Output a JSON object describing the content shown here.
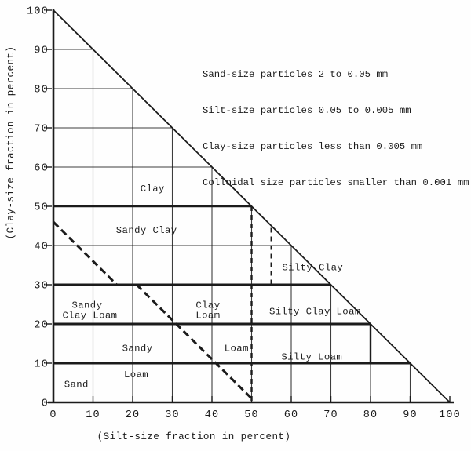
{
  "page": {
    "background": "#fefefe",
    "ink": "#1b1b1b",
    "description": "Triangular soil texture classification chart (typewritten scan)"
  },
  "notes": {
    "lines": [
      "Sand-size particles 2 to 0.05 mm",
      "Silt-size particles 0.05 to 0.005 mm",
      "Clay-size particles less than 0.005 mm",
      "Colloidal size particles smaller than 0.001 mm"
    ]
  },
  "chart": {
    "type": "soil-texture-classification-triangle",
    "x_axis": {
      "title": "(Silt-size fraction in percent)",
      "min": 0,
      "max": 100,
      "ticks": [
        "0",
        "10",
        "20",
        "30",
        "40",
        "50",
        "60",
        "70",
        "80",
        "90",
        "100"
      ]
    },
    "y_axis": {
      "title": "(Clay-size fraction in percent)",
      "min": 0,
      "max": 100,
      "ticks": [
        "0",
        "10",
        "20",
        "30",
        "40",
        "50",
        "60",
        "70",
        "80",
        "90",
        "100"
      ]
    },
    "grid_step": 10,
    "labels": [
      {
        "text": "Clay",
        "silt": 25.0,
        "clay": 54.6
      },
      {
        "text": "Sandy Clay",
        "silt": 23.5,
        "clay": 44.0
      },
      {
        "text": "Silty Clay",
        "silt": 65.4,
        "clay": 34.5
      },
      {
        "text": "Sandy",
        "silt": 8.5,
        "clay": 24.9
      },
      {
        "text": "Clay Loam",
        "silt": 9.2,
        "clay": 22.3
      },
      {
        "text": "Clay",
        "silt": 39.0,
        "clay": 24.9
      },
      {
        "text": "Loam",
        "silt": 39.0,
        "clay": 22.3
      },
      {
        "text": "Silty Clay Loam",
        "silt": 66.0,
        "clay": 23.3
      },
      {
        "text": "Sandy",
        "silt": 21.2,
        "clay": 13.9
      },
      {
        "text": "Loam",
        "silt": 20.9,
        "clay": 7.2
      },
      {
        "text": "Loam",
        "silt": 46.2,
        "clay": 13.9
      },
      {
        "text": "Silty Loam",
        "silt": 65.2,
        "clay": 11.7
      },
      {
        "text": "Sand",
        "silt": 5.8,
        "clay": 4.7
      }
    ],
    "boundaries": [
      {
        "from": [
          0,
          50
        ],
        "to": [
          50,
          50
        ],
        "style": "solid",
        "weight": "medium"
      },
      {
        "from": [
          0,
          30
        ],
        "to": [
          70,
          30
        ],
        "style": "solid",
        "weight": "heavy"
      },
      {
        "from": [
          0,
          20
        ],
        "to": [
          80,
          20
        ],
        "style": "solid",
        "weight": "heavy"
      },
      {
        "from": [
          0,
          10
        ],
        "to": [
          90,
          10
        ],
        "style": "solid",
        "weight": "heavy"
      },
      {
        "from": [
          50,
          50
        ],
        "to": [
          50,
          0
        ],
        "style": "dashed",
        "weight": "medium"
      },
      {
        "from": [
          55,
          44.5
        ],
        "to": [
          55,
          30
        ],
        "style": "dashed",
        "weight": "medium"
      },
      {
        "from": [
          80,
          20
        ],
        "to": [
          80,
          10
        ],
        "style": "solid",
        "weight": "medium"
      },
      {
        "from": [
          0,
          46
        ],
        "to": [
          16,
          30
        ],
        "style": "dashed",
        "weight": "heavy"
      },
      {
        "from": [
          21,
          30
        ],
        "to": [
          50,
          1
        ],
        "style": "dashed",
        "weight": "heavy"
      }
    ]
  }
}
